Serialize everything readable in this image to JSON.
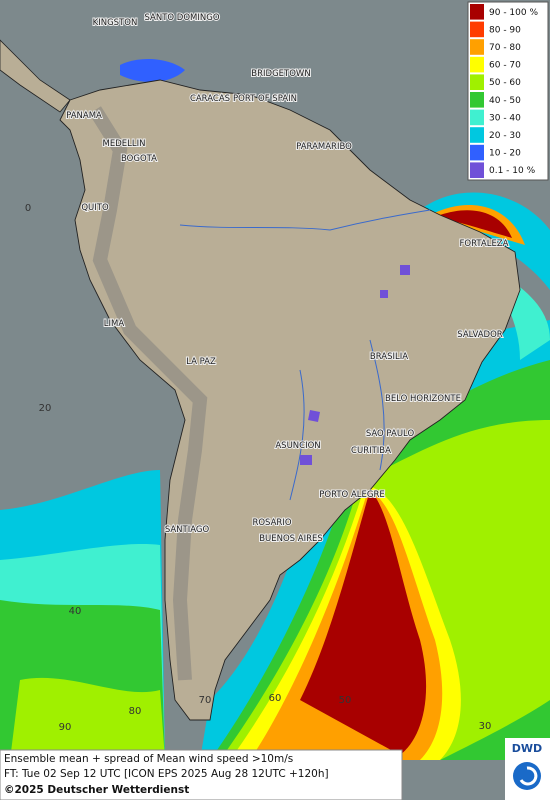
{
  "legend": [
    {
      "label": "90 - 100 %",
      "color": "#a80000"
    },
    {
      "label": "80 - 90",
      "color": "#ff3c00"
    },
    {
      "label": "70 - 80",
      "color": "#ffa000"
    },
    {
      "label": "60 - 70",
      "color": "#ffff00"
    },
    {
      "label": "50 - 60",
      "color": "#a0f000"
    },
    {
      "label": "40 - 50",
      "color": "#32c832"
    },
    {
      "label": "30 - 40",
      "color": "#40f0d0"
    },
    {
      "label": "20 - 30",
      "color": "#00c8e0"
    },
    {
      "label": "10 - 20",
      "color": "#3060ff"
    },
    {
      "label": "0.1 - 10 %",
      "color": "#7050d8"
    }
  ],
  "cities": [
    "KINGSTON",
    "SANTO DOMINGO",
    "BRIDGETOWN",
    "PANAMA",
    "CARACAS",
    "PORT OF SPAIN",
    "MEDELLIN",
    "BOGOTA",
    "PARAMARIBO",
    "QUITO",
    "FORTALEZA",
    "LIMA",
    "SALVADOR",
    "BRASILIA",
    "LA PAZ",
    "BELO HORIZONTE",
    "SAO PAULO",
    "ASUNCION",
    "CURITIBA",
    "PORTO ALEGRE",
    "ROSARIO",
    "SANTIAGO",
    "BUENOS AIRES"
  ],
  "graticule": [
    "0",
    "20",
    "40",
    "60",
    "70",
    "80",
    "90",
    "50",
    "30"
  ],
  "footer": [
    "Ensemble mean + spread of Mean wind speed >10m/s",
    "FT: Tue 02 Sep 12 UTC [ICON EPS 2025 Aug 28 12UTC +120h]",
    "©2025 Deutscher Wetterdienst"
  ],
  "logo": "DWD"
}
